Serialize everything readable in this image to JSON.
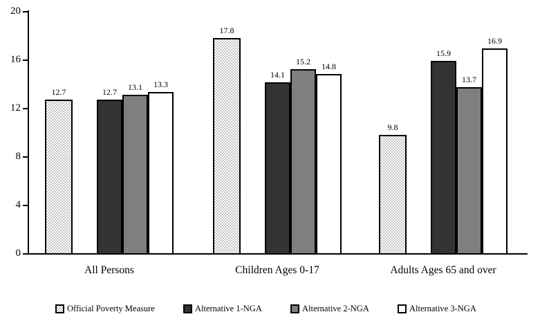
{
  "chart_data": {
    "type": "bar",
    "title": "",
    "xlabel": "",
    "ylabel": "",
    "categories": [
      "All Persons",
      "Children Ages 0-17",
      "Adults Ages 65 and over"
    ],
    "series": [
      {
        "name": "Official Poverty Measure",
        "fill": "stipple",
        "color": "#ffffff",
        "values": [
          12.7,
          17.8,
          9.8
        ]
      },
      {
        "name": "Alternative 1-NGA",
        "fill": "solid",
        "color": "#333333",
        "values": [
          12.7,
          14.1,
          15.9
        ]
      },
      {
        "name": "Alternative 2-NGA",
        "fill": "solid",
        "color": "#7f7f7f",
        "values": [
          13.1,
          15.2,
          13.7
        ]
      },
      {
        "name": "Alternative 3-NGA",
        "fill": "solid",
        "color": "#ffffff",
        "values": [
          13.3,
          14.8,
          16.9
        ]
      }
    ],
    "yticks": [
      0,
      4,
      8,
      12,
      16,
      20
    ],
    "ylim": [
      0,
      20
    ],
    "bar_value_labels": true,
    "grid": false,
    "legend_position": "bottom",
    "axis_color": "#000000",
    "bar_border_color": "#000000"
  }
}
